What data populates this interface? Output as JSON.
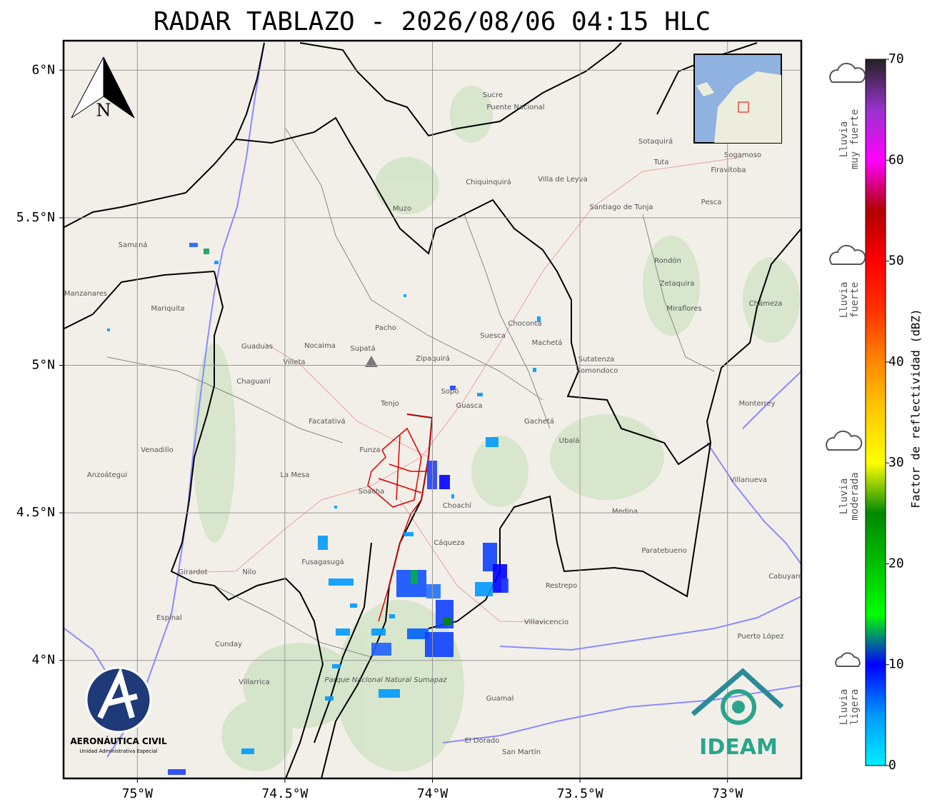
{
  "title": "RADAR TABLAZO - 2026/08/06 04:15 HLC",
  "map": {
    "lon_range": [
      -75.25,
      -72.75
    ],
    "lat_range": [
      3.6,
      6.1
    ],
    "lon_ticks": [
      {
        "value": -75,
        "label": "75°W"
      },
      {
        "value": -74.5,
        "label": "74.5°W"
      },
      {
        "value": -74,
        "label": "74°W"
      },
      {
        "value": -73.5,
        "label": "73.5°W"
      },
      {
        "value": -73,
        "label": "73°W"
      }
    ],
    "lat_ticks": [
      {
        "value": 6,
        "label": "6°N"
      },
      {
        "value": 5.5,
        "label": "5.5°N"
      },
      {
        "value": 5,
        "label": "5°N"
      },
      {
        "value": 4.5,
        "label": "4.5°N"
      },
      {
        "value": 4,
        "label": "4°N"
      }
    ],
    "grid": true,
    "north": "N",
    "places": [
      "Sucre",
      "Puente Nacional",
      "Chiquinquirá",
      "Muzo",
      "Villa de Leyva",
      "Santiago de Tunja",
      "Sotaquirá",
      "Tuta",
      "Sogamoso",
      "Firavitoba",
      "Pesca",
      "Rondón",
      "Zetaquira",
      "Miraflores",
      "Chámeza",
      "Pacho",
      "Nocaima",
      "Guaduas",
      "Villeta",
      "Chaguaní",
      "Facatativá",
      "Funza",
      "Soacha",
      "La Mesa",
      "Fusagasugá",
      "Choachí",
      "Cáqueza",
      "Gachetá",
      "Ubalá",
      "Guasca",
      "Sopó",
      "Tenjo",
      "Suesca",
      "Chocontá",
      "Machetá",
      "Sutatenza",
      "Somondoco",
      "Medina",
      "Restrepo",
      "Villavicencio",
      "Puerto López",
      "Paratebueno",
      "Villanueva",
      "Monterrey",
      "Cabuyaro",
      "Guamal",
      "San Martín",
      "El Dorado",
      "Mariquita",
      "Samaná",
      "Manzanares",
      "Girardot",
      "Nilo",
      "Cunday",
      "Villarrica",
      "Espinal",
      "Venadillo",
      "Anzoátegui",
      "Zipaquirá",
      "Supatá"
    ],
    "park": "Parque Nacional Natural Sumapaz"
  },
  "colorbar": {
    "label": "Factor de reflectividad (dBZ)",
    "range": [
      0,
      70
    ],
    "ticks": [
      0,
      10,
      20,
      30,
      40,
      50,
      60,
      70
    ],
    "colors": [
      "#00eeff",
      "#0099ff",
      "#0000ff",
      "#00ff00",
      "#00c000",
      "#008800",
      "#ffff00",
      "#ffcc00",
      "#ff8800",
      "#ff3300",
      "#ff0000",
      "#b00000",
      "#ff00ff",
      "#9933cc",
      "#222222"
    ]
  },
  "rain_levels": [
    [
      "Lluvia",
      "muy fuerte"
    ],
    [
      "Lluvia",
      "fuerte"
    ],
    [
      "Lluvia",
      "moderada"
    ],
    [
      "Lluvia",
      "ligera"
    ]
  ],
  "logos": {
    "aerocivil": "AERONÁUTICA CIVIL",
    "aerocivil_sub": "Unidad Administrativa Especial",
    "ideam": "IDEAM"
  }
}
